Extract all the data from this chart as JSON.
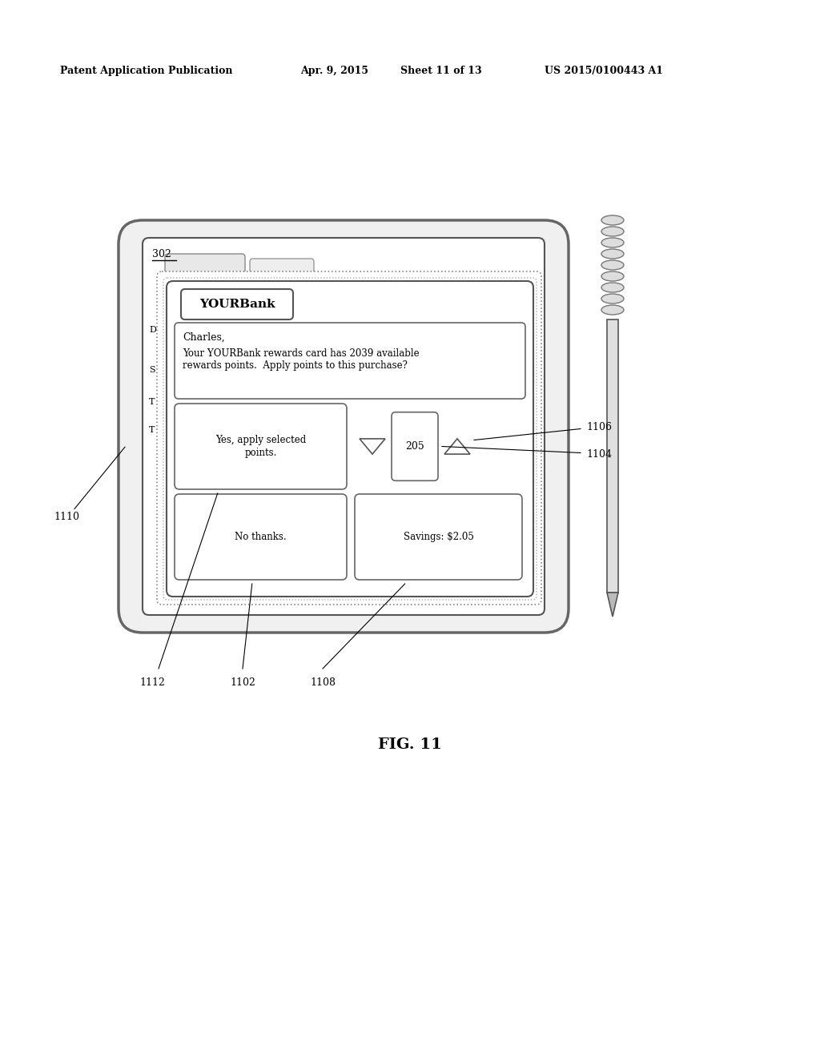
{
  "bg_color": "#ffffff",
  "header_text": "Patent Application Publication",
  "header_date": "Apr. 9, 2015",
  "header_sheet": "Sheet 11 of 13",
  "header_patent": "US 2015/0100443 A1",
  "fig_label": "FIG. 11",
  "ref_302": "302",
  "ref_1110": "1110",
  "ref_1112": "1112",
  "ref_1102": "1102",
  "ref_1108": "1108",
  "ref_1106": "1106",
  "ref_1104": "1104",
  "bank_name": "YOURBank",
  "greeting": "Charles,",
  "message": "Your YOURBank rewards card has 2039 available\nrewards points.  Apply points to this purchase?",
  "btn1": "Yes, apply selected\npoints.",
  "btn2": "No thanks.",
  "points_val": "205",
  "savings": "Savings: $2.05",
  "left_labels": [
    "D",
    "S",
    "T",
    "T"
  ]
}
